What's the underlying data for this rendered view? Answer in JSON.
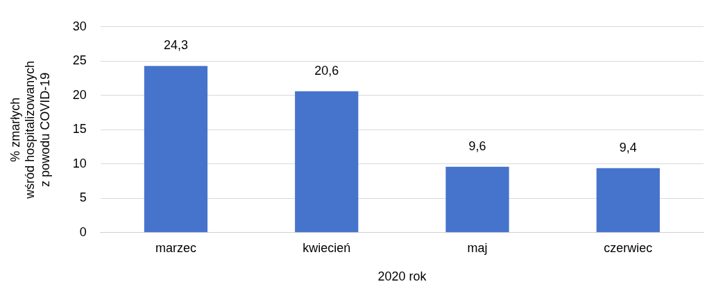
{
  "chart_data": {
    "type": "bar",
    "xlabel": "2020 rok",
    "ylabel": [
      "% zmarłych",
      "wśród hospitalizowanych",
      "z powodu COVID-19"
    ],
    "categories": [
      "marzec",
      "kwiecień",
      "maj",
      "czerwiec"
    ],
    "values": [
      24.3,
      20.6,
      9.6,
      9.4
    ],
    "value_labels": [
      "24,3",
      "20,6",
      "9,6",
      "9,4"
    ],
    "color": "#4673cc",
    "ylim": [
      0,
      30
    ],
    "yticks": [
      0,
      5,
      10,
      15,
      20,
      25,
      30
    ],
    "grid": "y"
  }
}
